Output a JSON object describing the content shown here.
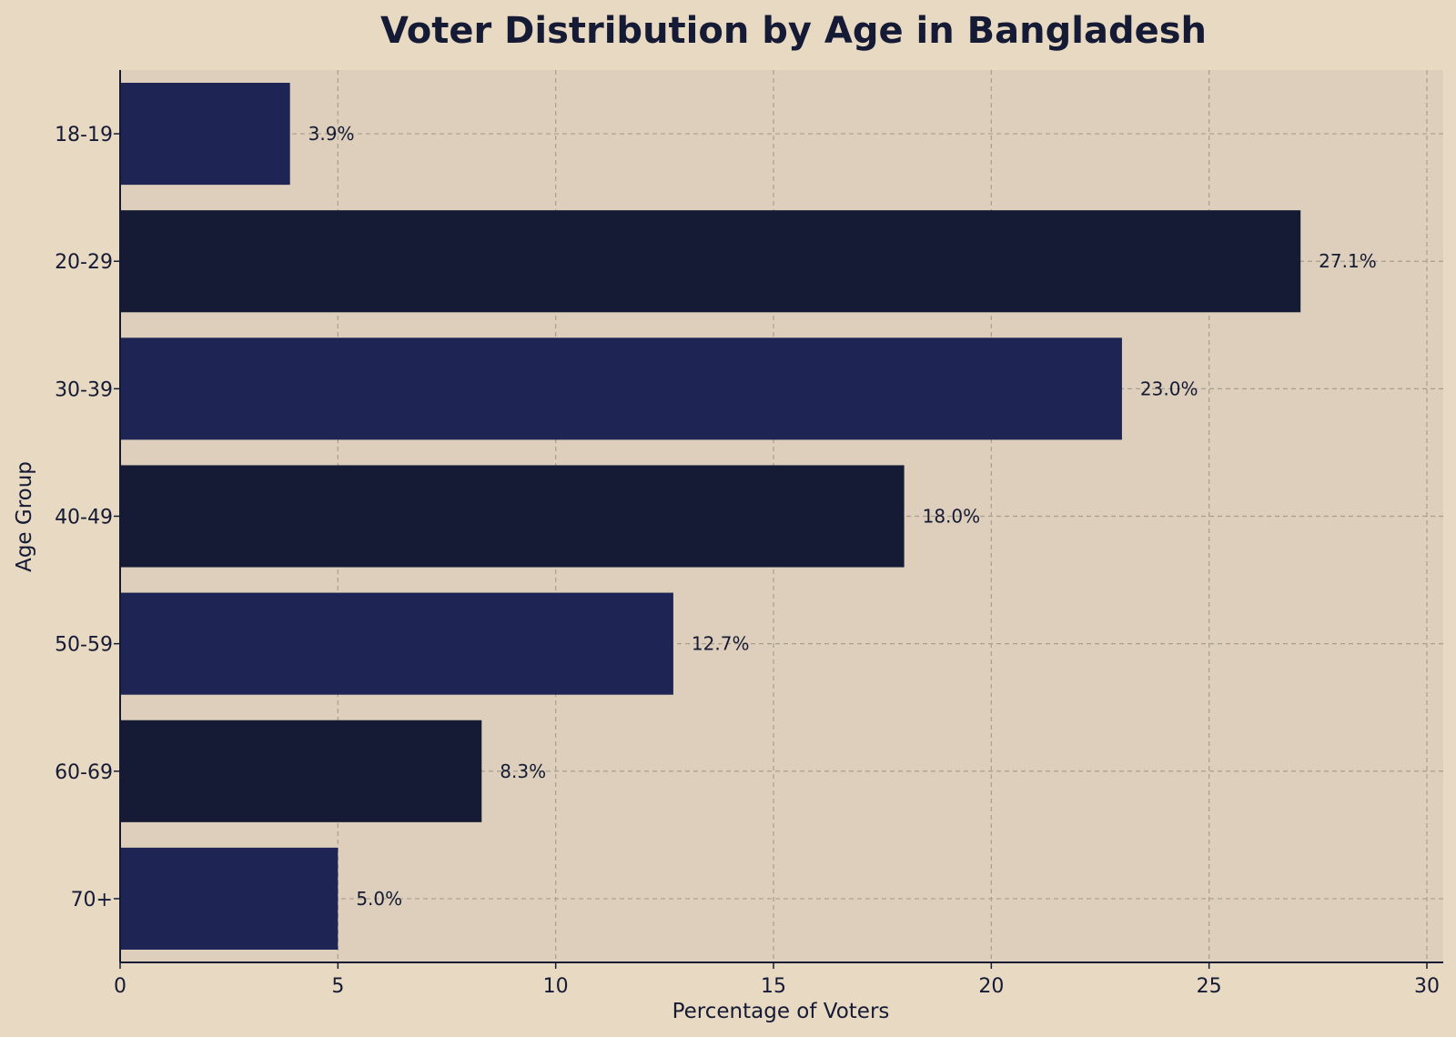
{
  "chart_data": {
    "type": "bar",
    "orientation": "horizontal",
    "title": "Voter Distribution by Age in Bangladesh",
    "xlabel": "Percentage of Voters",
    "ylabel": "Age Group",
    "categories": [
      "18-19",
      "20-29",
      "30-39",
      "40-49",
      "50-59",
      "60-69",
      "70+"
    ],
    "values": [
      3.9,
      27.1,
      23.0,
      18.0,
      12.7,
      8.3,
      5.0
    ],
    "data_labels": [
      "3.9%",
      "27.1%",
      "23.0%",
      "18.0%",
      "12.7%",
      "8.3%",
      "5.0%"
    ],
    "xlim": [
      0,
      30
    ],
    "xticks": [
      0,
      5,
      10,
      15,
      20,
      25,
      30
    ],
    "grid": true,
    "legend": "none",
    "colors": {
      "bar_a": "#1e2454",
      "bar_b": "#151a35",
      "page_background": "#e8d9c2",
      "plot_background": "#ddcfbb",
      "grid": "#a89e8e",
      "axis": "#151a35"
    }
  }
}
